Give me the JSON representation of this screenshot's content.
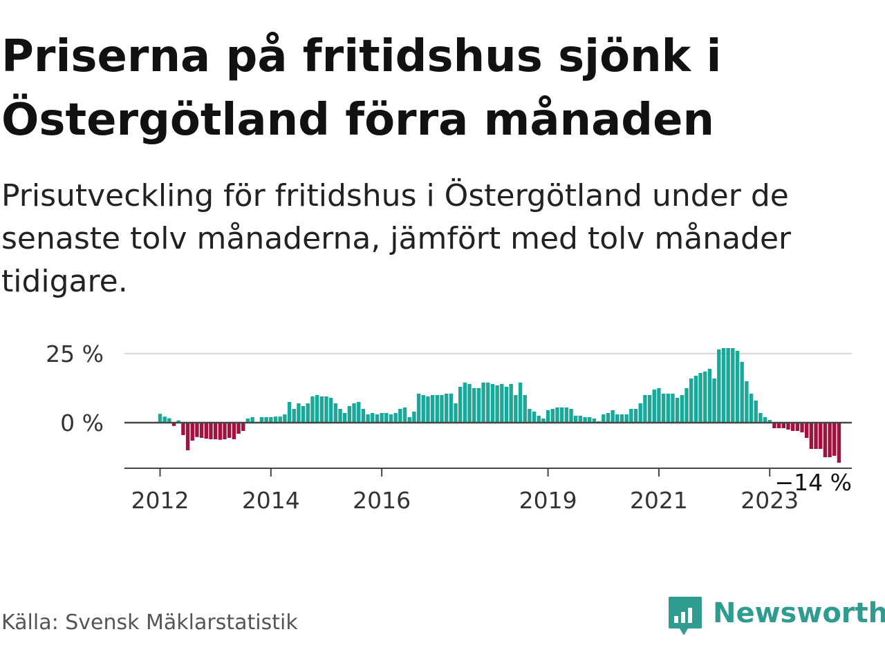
{
  "header": {
    "title": "Priserna på fritidshus sjönk i Östergötland förra månaden",
    "subtitle": "Prisutveckling för fritidshus i Östergötland under de senaste tolv månaderna, jämfört med tolv månader tidigare."
  },
  "footer": {
    "source": "Källa: Svensk Mäklarstatistik",
    "brand": "Newsworthy",
    "brand_icon": "bar-chart-speech-bubble-icon"
  },
  "colors": {
    "positive": "#1aa89a",
    "negative": "#a3123f",
    "grid": "#d9d9d9",
    "baseline": "#444444",
    "brand": "#2f9c8f"
  },
  "chart_data": {
    "type": "bar",
    "y_ticks": [
      {
        "value": 0,
        "label": "0 %"
      },
      {
        "value": 25,
        "label": "25 %"
      }
    ],
    "ylim": [
      -17,
      26
    ],
    "x_ticks": [
      {
        "index": 0,
        "label": "2012"
      },
      {
        "index": 24,
        "label": "2014"
      },
      {
        "index": 48,
        "label": "2016"
      },
      {
        "index": 84,
        "label": "2019"
      },
      {
        "index": 108,
        "label": "2021"
      },
      {
        "index": 132,
        "label": "2023"
      }
    ],
    "last_value_label": "−14 %",
    "values": [
      3.2,
      2.2,
      1.6,
      -1.2,
      0.8,
      -4.5,
      -10.0,
      -6.5,
      -5.2,
      -5.5,
      -5.8,
      -6.0,
      -6.0,
      -6.2,
      -6.0,
      -5.5,
      -6.0,
      -4.0,
      -3.0,
      1.5,
      2.0,
      0.2,
      2.0,
      2.0,
      2.0,
      2.2,
      2.2,
      3.0,
      7.5,
      5.0,
      7.0,
      6.0,
      7.0,
      9.5,
      10.0,
      9.5,
      9.5,
      9.0,
      7.0,
      5.0,
      3.5,
      6.0,
      7.0,
      7.5,
      5.0,
      3.0,
      3.5,
      3.0,
      3.5,
      3.5,
      3.0,
      3.5,
      5.0,
      5.5,
      2.0,
      4.0,
      10.5,
      10.0,
      9.5,
      10.0,
      10.0,
      10.0,
      10.5,
      10.5,
      7.0,
      13.0,
      14.5,
      14.0,
      12.5,
      12.5,
      14.5,
      14.5,
      14.0,
      13.5,
      14.0,
      13.0,
      14.0,
      10.0,
      14.5,
      10.0,
      5.0,
      4.0,
      2.5,
      1.5,
      4.5,
      5.0,
      5.5,
      5.5,
      5.5,
      5.0,
      2.5,
      2.5,
      2.0,
      2.0,
      1.5,
      0.5,
      3.0,
      3.5,
      4.5,
      3.0,
      3.0,
      3.0,
      5.0,
      5.0,
      7.0,
      10.0,
      10.0,
      12.0,
      12.5,
      10.5,
      10.5,
      10.5,
      9.0,
      10.0,
      12.5,
      16.0,
      17.0,
      18.0,
      18.5,
      19.5,
      16.0,
      26.5,
      27.0,
      27.0,
      27.0,
      26.0,
      22.0,
      15.0,
      10.5,
      8.0,
      3.5,
      2.0,
      1.0,
      -2.0,
      -2.0,
      -2.0,
      -2.5,
      -3.0,
      -3.0,
      -3.5,
      -5.5,
      -9.5,
      -9.5,
      -9.5,
      -12.5,
      -12.5,
      -12.0,
      -14.5
    ]
  }
}
